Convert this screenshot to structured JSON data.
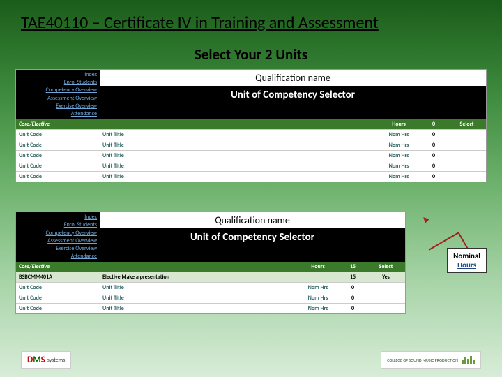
{
  "title": "TAE40110 – Certificate IV in Training and Assessment",
  "subtitle": "Select Your 2 Units",
  "sidebar": {
    "items": [
      "Index",
      "Enrol Students",
      "Competency Overview",
      "Assessment Overview",
      "Exercise Overview",
      "Attendance"
    ]
  },
  "panel1": {
    "qual": "Qualification name",
    "selector": "Unit of Competency Selector",
    "greenbar": {
      "left": "Core/Elective",
      "hours": "Hours",
      "val": "0",
      "select": "Select"
    },
    "rows": [
      {
        "code": "Unit Code",
        "title": "Unit Title",
        "nom": "Nom Hrs",
        "hrs": "0",
        "sel": ""
      },
      {
        "code": "Unit Code",
        "title": "Unit Title",
        "nom": "Nom Hrs",
        "hrs": "0",
        "sel": ""
      },
      {
        "code": "Unit Code",
        "title": "Unit Title",
        "nom": "Nom Hrs",
        "hrs": "0",
        "sel": ""
      },
      {
        "code": "Unit Code",
        "title": "Unit Title",
        "nom": "Nom Hrs",
        "hrs": "0",
        "sel": ""
      },
      {
        "code": "Unit Code",
        "title": "Unit Title",
        "nom": "Nom Hrs",
        "hrs": "0",
        "sel": ""
      }
    ]
  },
  "panel2": {
    "qual": "Qualification name",
    "selector": "Unit of Competency Selector",
    "greenbar": {
      "left": "Core/Elective",
      "hours": "Hours",
      "val": "15",
      "select": "Select"
    },
    "rows": [
      {
        "code": "BSBCMM401A",
        "title": "Elective Make a presentation",
        "nom": "",
        "hrs": "15",
        "sel": "Yes",
        "shaded": true
      },
      {
        "code": "Unit Code",
        "title": "Unit Title",
        "nom": "Nom Hrs",
        "hrs": "0",
        "sel": ""
      },
      {
        "code": "Unit Code",
        "title": "Unit Title",
        "nom": "Nom Hrs",
        "hrs": "0",
        "sel": ""
      },
      {
        "code": "Unit Code",
        "title": "Unit Title",
        "nom": "Nom Hrs",
        "hrs": "0",
        "sel": ""
      }
    ]
  },
  "callout": {
    "line1": "Nominal",
    "line2": "Hours"
  },
  "logo_left": {
    "d": "D",
    "m": "M",
    "s": "S",
    "rest": "systems",
    "tag": ""
  },
  "logo_right": {
    "text": "COLLEGE OF SOUND\nMUSIC PRODUCTION"
  }
}
